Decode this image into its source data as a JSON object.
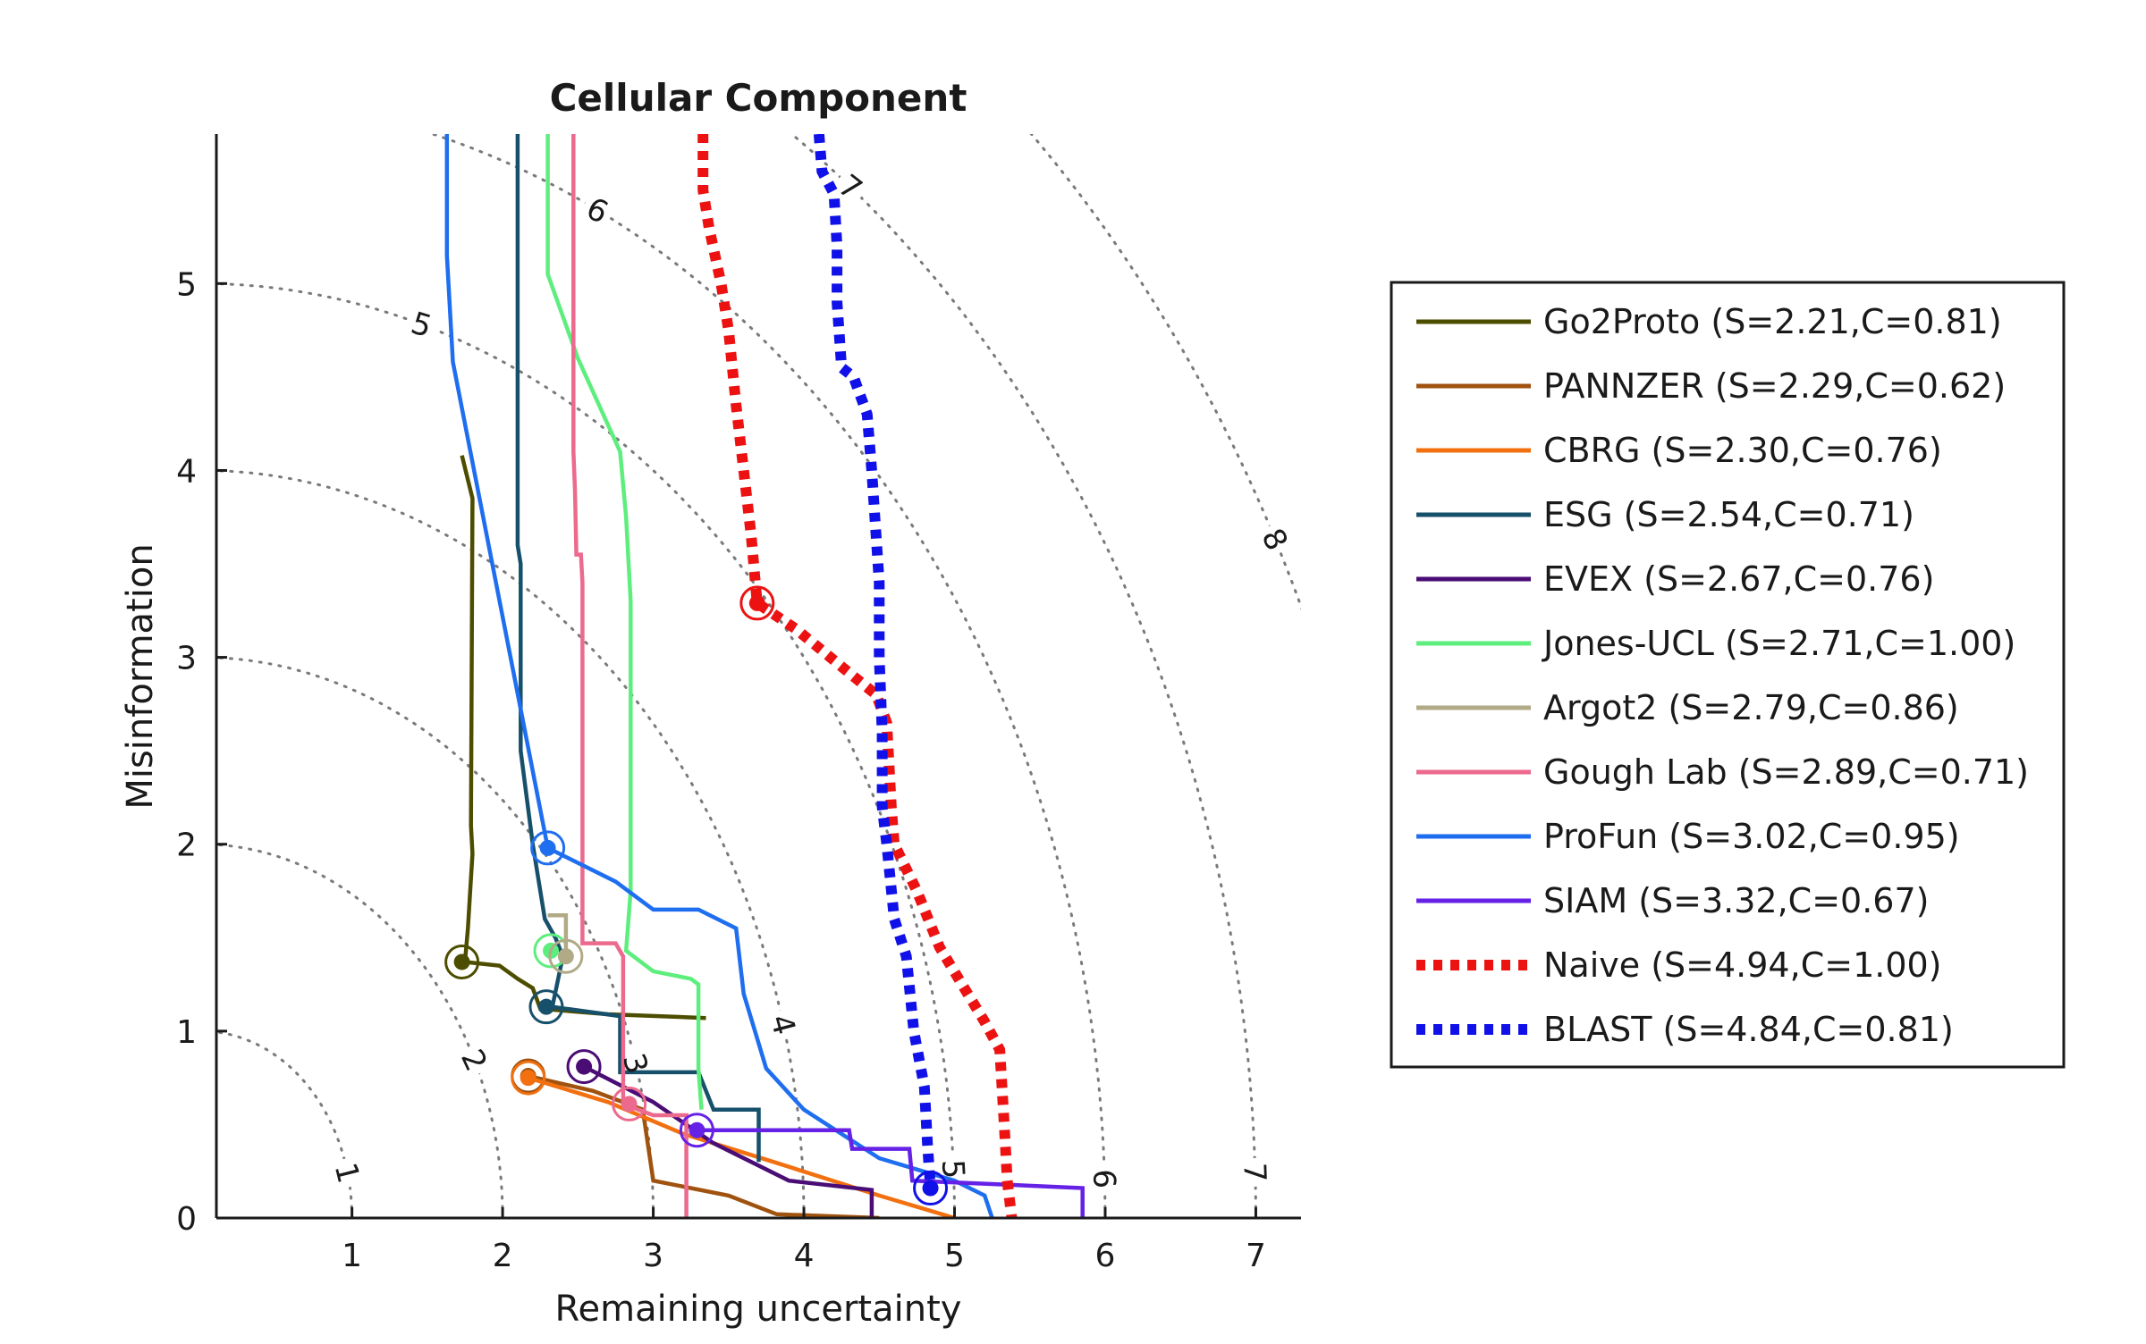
{
  "chart_data": {
    "type": "line",
    "title": "Cellular Component",
    "xlabel": "Remaining uncertainty",
    "ylabel": "Misinformation",
    "xlim": [
      0.1,
      7.3
    ],
    "ylim": [
      0,
      5.8
    ],
    "xticks": [
      1,
      2,
      3,
      4,
      5,
      6,
      7
    ],
    "yticks": [
      0,
      1,
      2,
      3,
      4,
      5
    ],
    "grid": false,
    "legend_position": "right",
    "contours": {
      "levels": [
        1,
        2,
        3,
        4,
        5,
        6,
        7,
        8
      ],
      "style": "dotted",
      "labels": [
        {
          "text": "1",
          "level": 1,
          "angle_deg": 14
        },
        {
          "text": "2",
          "level": 2,
          "angle_deg": 25
        },
        {
          "text": "3",
          "level": 3,
          "angle_deg": 16
        },
        {
          "text": "4",
          "level": 4,
          "angle_deg": 15
        },
        {
          "text": "5",
          "level": 5,
          "angle_deg": 3
        },
        {
          "text": "6",
          "level": 6,
          "angle_deg": 2
        },
        {
          "text": "7",
          "level": 7,
          "angle_deg": 2
        },
        {
          "text": "5",
          "level": 5,
          "angle_deg": 73
        },
        {
          "text": "6",
          "level": 6,
          "angle_deg": 64
        },
        {
          "text": "7",
          "level": 7,
          "angle_deg": 52
        },
        {
          "text": "8",
          "level": 8,
          "angle_deg": 27
        }
      ]
    },
    "series": [
      {
        "name": "Go2Proto (S=2.21,C=0.81)",
        "color": "#4d4d00",
        "style": "solid",
        "marker": {
          "x": 1.73,
          "y": 1.37
        },
        "points": [
          [
            1.73,
            4.08
          ],
          [
            1.8,
            3.85
          ],
          [
            1.79,
            2.1
          ],
          [
            1.8,
            1.95
          ],
          [
            1.77,
            1.55
          ],
          [
            1.75,
            1.37
          ],
          [
            1.98,
            1.35
          ],
          [
            2.1,
            1.28
          ],
          [
            2.2,
            1.23
          ],
          [
            2.25,
            1.12
          ],
          [
            2.7,
            1.09
          ],
          [
            3.35,
            1.07
          ]
        ]
      },
      {
        "name": "PANNZER (S=2.29,C=0.62)",
        "color": "#a0520f",
        "style": "solid",
        "marker": {
          "x": 2.17,
          "y": 0.76
        },
        "points": [
          [
            2.17,
            0.76
          ],
          [
            2.6,
            0.68
          ],
          [
            2.93,
            0.58
          ],
          [
            3.0,
            0.2
          ],
          [
            3.5,
            0.12
          ],
          [
            3.82,
            0.02
          ],
          [
            4.5,
            0.0
          ]
        ]
      },
      {
        "name": "CBRG (S=2.30,C=0.76)",
        "color": "#f2700f",
        "style": "solid",
        "marker": {
          "x": 2.17,
          "y": 0.75
        },
        "points": [
          [
            2.17,
            0.75
          ],
          [
            2.7,
            0.62
          ],
          [
            3.2,
            0.45
          ],
          [
            3.8,
            0.3
          ],
          [
            4.5,
            0.12
          ],
          [
            5.0,
            0.0
          ]
        ]
      },
      {
        "name": "ESG (S=2.54,C=0.71)",
        "color": "#17506b",
        "style": "solid",
        "marker": {
          "x": 2.29,
          "y": 1.13
        },
        "points": [
          [
            2.1,
            5.8
          ],
          [
            2.1,
            3.6
          ],
          [
            2.12,
            3.5
          ],
          [
            2.12,
            2.5
          ],
          [
            2.2,
            2.0
          ],
          [
            2.28,
            1.6
          ],
          [
            2.35,
            1.5
          ],
          [
            2.4,
            1.4
          ],
          [
            2.33,
            1.13
          ],
          [
            2.78,
            1.08
          ],
          [
            2.78,
            0.78
          ],
          [
            3.3,
            0.78
          ],
          [
            3.4,
            0.58
          ],
          [
            3.7,
            0.58
          ],
          [
            3.7,
            0.3
          ]
        ]
      },
      {
        "name": "EVEX (S=2.67,C=0.76)",
        "color": "#4a0d75",
        "style": "solid",
        "marker": {
          "x": 2.54,
          "y": 0.81
        },
        "points": [
          [
            2.54,
            0.81
          ],
          [
            3.0,
            0.62
          ],
          [
            3.4,
            0.4
          ],
          [
            3.9,
            0.2
          ],
          [
            4.45,
            0.15
          ],
          [
            4.45,
            0.0
          ]
        ]
      },
      {
        "name": "Jones-UCL (S=2.71,C=1.00)",
        "color": "#5eee7e",
        "style": "solid",
        "marker": {
          "x": 2.32,
          "y": 1.43
        },
        "points": [
          [
            2.3,
            5.8
          ],
          [
            2.3,
            5.05
          ],
          [
            2.5,
            4.6
          ],
          [
            2.78,
            4.1
          ],
          [
            2.82,
            3.75
          ],
          [
            2.85,
            3.3
          ],
          [
            2.85,
            1.75
          ],
          [
            2.82,
            1.43
          ],
          [
            3.0,
            1.32
          ],
          [
            3.25,
            1.28
          ],
          [
            3.3,
            1.25
          ],
          [
            3.3,
            0.8
          ],
          [
            3.32,
            0.58
          ]
        ]
      },
      {
        "name": "Argot2 (S=2.79,C=0.86)",
        "color": "#b1aa86",
        "style": "solid",
        "marker": {
          "x": 2.42,
          "y": 1.4
        },
        "points": [
          [
            2.3,
            1.62
          ],
          [
            2.42,
            1.62
          ],
          [
            2.42,
            1.4
          ]
        ]
      },
      {
        "name": "Gough Lab (S=2.89,C=0.71)",
        "color": "#ec6a8d",
        "style": "solid",
        "marker": {
          "x": 2.84,
          "y": 0.61
        },
        "points": [
          [
            2.47,
            5.8
          ],
          [
            2.47,
            4.1
          ],
          [
            2.48,
            3.9
          ],
          [
            2.49,
            3.55
          ],
          [
            2.52,
            3.55
          ],
          [
            2.53,
            3.4
          ],
          [
            2.53,
            1.47
          ],
          [
            2.75,
            1.47
          ],
          [
            2.8,
            1.4
          ],
          [
            2.8,
            0.61
          ],
          [
            3.0,
            0.55
          ],
          [
            3.22,
            0.55
          ],
          [
            3.22,
            0.0
          ]
        ]
      },
      {
        "name": "ProFun (S=3.02,C=0.95)",
        "color": "#1f6ef0",
        "style": "solid",
        "marker": {
          "x": 2.3,
          "y": 1.98
        },
        "points": [
          [
            1.63,
            5.8
          ],
          [
            1.63,
            5.15
          ],
          [
            1.67,
            4.58
          ],
          [
            2.3,
            1.98
          ],
          [
            2.75,
            1.8
          ],
          [
            3.0,
            1.65
          ],
          [
            3.3,
            1.65
          ],
          [
            3.55,
            1.55
          ],
          [
            3.6,
            1.2
          ],
          [
            3.75,
            0.8
          ],
          [
            4.0,
            0.58
          ],
          [
            4.5,
            0.32
          ],
          [
            5.0,
            0.2
          ],
          [
            5.2,
            0.12
          ],
          [
            5.25,
            0.0
          ]
        ]
      },
      {
        "name": "SIAM (S=3.32,C=0.67)",
        "color": "#6521e6",
        "style": "solid",
        "marker": {
          "x": 3.29,
          "y": 0.47
        },
        "points": [
          [
            3.29,
            0.47
          ],
          [
            3.6,
            0.47
          ],
          [
            4.3,
            0.47
          ],
          [
            4.32,
            0.37
          ],
          [
            4.7,
            0.37
          ],
          [
            4.72,
            0.2
          ],
          [
            5.3,
            0.18
          ],
          [
            5.85,
            0.16
          ],
          [
            5.85,
            0.0
          ]
        ]
      },
      {
        "name": "Naive (S=4.94,C=1.00)",
        "color": "#ec1212",
        "style": "dotted",
        "marker": {
          "x": 3.69,
          "y": 3.29
        },
        "points": [
          [
            3.33,
            5.8
          ],
          [
            3.33,
            5.5
          ],
          [
            3.37,
            5.3
          ],
          [
            3.45,
            5.0
          ],
          [
            3.5,
            4.75
          ],
          [
            3.55,
            4.35
          ],
          [
            3.6,
            4.0
          ],
          [
            3.65,
            3.65
          ],
          [
            3.69,
            3.29
          ],
          [
            3.95,
            3.15
          ],
          [
            4.25,
            2.95
          ],
          [
            4.48,
            2.8
          ],
          [
            4.55,
            2.65
          ],
          [
            4.58,
            2.2
          ],
          [
            4.6,
            2.0
          ],
          [
            4.75,
            1.75
          ],
          [
            4.9,
            1.45
          ],
          [
            5.05,
            1.25
          ],
          [
            5.2,
            1.05
          ],
          [
            5.3,
            0.9
          ],
          [
            5.33,
            0.5
          ],
          [
            5.35,
            0.2
          ],
          [
            5.38,
            0.0
          ]
        ]
      },
      {
        "name": "BLAST (S=4.84,C=0.81)",
        "color": "#1010e8",
        "style": "dotted",
        "marker": {
          "x": 4.84,
          "y": 0.16
        },
        "points": [
          [
            4.1,
            5.8
          ],
          [
            4.12,
            5.6
          ],
          [
            4.2,
            5.48
          ],
          [
            4.22,
            5.2
          ],
          [
            4.22,
            4.9
          ],
          [
            4.25,
            4.55
          ],
          [
            4.33,
            4.5
          ],
          [
            4.42,
            4.3
          ],
          [
            4.45,
            4.0
          ],
          [
            4.5,
            3.4
          ],
          [
            4.5,
            3.0
          ],
          [
            4.52,
            2.6
          ],
          [
            4.52,
            2.2
          ],
          [
            4.55,
            2.0
          ],
          [
            4.6,
            1.6
          ],
          [
            4.68,
            1.4
          ],
          [
            4.73,
            1.0
          ],
          [
            4.8,
            0.7
          ],
          [
            4.82,
            0.4
          ],
          [
            4.84,
            0.16
          ]
        ]
      }
    ]
  }
}
